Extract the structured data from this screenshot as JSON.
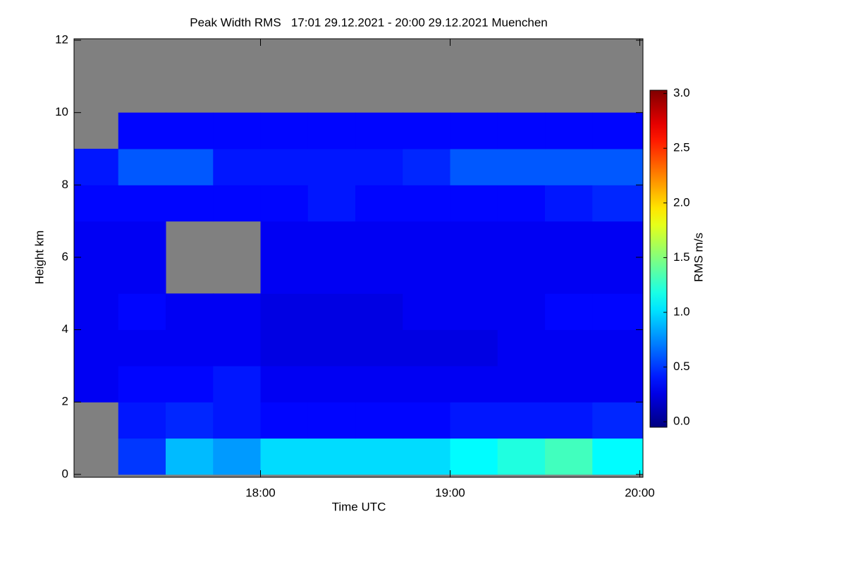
{
  "chart_data": {
    "type": "heatmap",
    "title": "Peak Width RMS   17:01 29.12.2021 - 20:00 29.12.2021 Muenchen",
    "x_label": "Time UTC",
    "y_label": "Height km",
    "x_edges": [
      17.0167,
      17.25,
      17.5,
      17.75,
      18,
      18.25,
      18.5,
      18.75,
      19,
      19.25,
      19.5,
      19.75,
      20.0167
    ],
    "y_edges": [
      0,
      1,
      2,
      3,
      4,
      5,
      6,
      7,
      8,
      9,
      10,
      11,
      12
    ],
    "z": [
      [
        null,
        0.5,
        0.9,
        0.8,
        1.0,
        1.0,
        1.0,
        1.0,
        1.1,
        1.2,
        1.3,
        1.1
      ],
      [
        null,
        0.4,
        0.45,
        0.4,
        0.35,
        0.35,
        0.35,
        0.35,
        0.4,
        0.4,
        0.4,
        0.45
      ],
      [
        0.3,
        0.35,
        0.35,
        0.4,
        0.3,
        0.3,
        0.3,
        0.3,
        0.3,
        0.3,
        0.3,
        0.3
      ],
      [
        0.3,
        0.3,
        0.3,
        0.3,
        0.25,
        0.25,
        0.25,
        0.25,
        0.25,
        0.3,
        0.3,
        0.3
      ],
      [
        0.3,
        0.35,
        0.3,
        0.3,
        0.25,
        0.25,
        0.25,
        0.3,
        0.3,
        0.3,
        0.35,
        0.35
      ],
      [
        0.3,
        0.3,
        null,
        null,
        0.3,
        0.3,
        0.3,
        0.3,
        0.3,
        0.3,
        0.3,
        0.3
      ],
      [
        0.3,
        0.3,
        null,
        null,
        0.3,
        0.3,
        0.3,
        0.3,
        0.3,
        0.3,
        0.3,
        0.3
      ],
      [
        0.35,
        0.35,
        0.35,
        0.35,
        0.35,
        0.4,
        0.35,
        0.35,
        0.35,
        0.35,
        0.4,
        0.45
      ],
      [
        0.4,
        0.6,
        0.6,
        0.4,
        0.4,
        0.4,
        0.4,
        0.45,
        0.6,
        0.6,
        0.6,
        0.6
      ],
      [
        null,
        0.35,
        0.35,
        0.35,
        0.35,
        0.35,
        0.35,
        0.35,
        0.35,
        0.35,
        0.35,
        0.35
      ],
      [
        null,
        null,
        null,
        null,
        null,
        null,
        null,
        null,
        null,
        null,
        null,
        null
      ],
      [
        null,
        null,
        null,
        null,
        null,
        null,
        null,
        null,
        null,
        null,
        null,
        null
      ]
    ],
    "xlim": [
      17.0167,
      20.0167
    ],
    "xticks": [
      {
        "value": 18,
        "label": "18:00"
      },
      {
        "value": 19,
        "label": "19:00"
      },
      {
        "value": 20,
        "label": "20:00"
      }
    ],
    "ylim": [
      -0.08,
      12.04
    ],
    "yticks": [
      0,
      2,
      4,
      6,
      8,
      10,
      12
    ],
    "missing_color": "#808080",
    "colorbar": {
      "label": "RMS m/s",
      "lim": [
        -0.05,
        3.03
      ],
      "ticks": [
        {
          "value": 0,
          "label": "0.0"
        },
        {
          "value": 0.5,
          "label": "0.5"
        },
        {
          "value": 1,
          "label": "1.0"
        },
        {
          "value": 1.5,
          "label": "1.5"
        },
        {
          "value": 2,
          "label": "2.0"
        },
        {
          "value": 2.5,
          "label": "2.5"
        },
        {
          "value": 3,
          "label": "3.0"
        }
      ]
    }
  }
}
